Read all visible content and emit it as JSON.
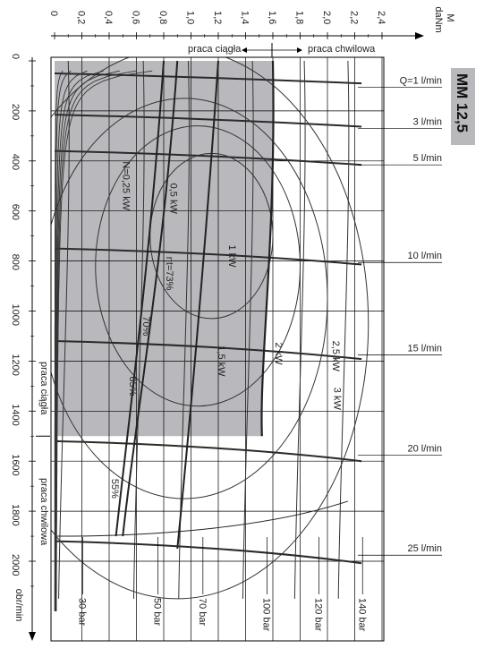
{
  "chart_data": {
    "type": "line",
    "title": "MM 12,5",
    "x_axis": {
      "label": "obr/min",
      "ticks": [
        0,
        200,
        400,
        600,
        800,
        1000,
        1200,
        1400,
        1600,
        1800,
        2000
      ],
      "range": [
        0,
        2200
      ]
    },
    "y_axis": {
      "label_line1": "M",
      "label_line2": "daNm",
      "ticks": [
        "0",
        "0,2",
        "0,4",
        "0,6",
        "0,8",
        "1,0",
        "1,2",
        "1,4",
        "1,6",
        "1,8",
        "2,0",
        "2,2",
        "2,4"
      ],
      "tick_values": [
        0,
        0.2,
        0.4,
        0.6,
        0.8,
        1.0,
        1.2,
        1.4,
        1.6,
        1.8,
        2.0,
        2.2,
        2.4
      ],
      "range": [
        0,
        2.4
      ]
    },
    "regions": {
      "continuous_label": "praca ciągła",
      "intermittent_label": "praca chwilowa",
      "continuous_limit_torque": 1.6,
      "continuous_limit_speed": 1500
    },
    "flow_lines": [
      {
        "label": "Q=1 l/min",
        "speed": 70
      },
      {
        "label": "3 l/min",
        "speed": 235
      },
      {
        "label": "5 l/min",
        "speed": 380
      },
      {
        "label": "10 l/min",
        "speed": 770
      },
      {
        "label": "15 l/min",
        "speed": 1140
      },
      {
        "label": "20 l/min",
        "speed": 1540
      },
      {
        "label": "25 l/min",
        "speed": 1940
      }
    ],
    "pressure_lines": [
      {
        "label": "30 bar",
        "torque": 0.05
      },
      {
        "label": "50 bar",
        "torque": 0.6
      },
      {
        "label": "70 bar",
        "torque": 0.93
      },
      {
        "label": "100 bar",
        "torque": 1.4
      },
      {
        "label": "120 bar",
        "torque": 1.78
      },
      {
        "label": "140 bar",
        "torque": 2.1
      }
    ],
    "power_lines": [
      {
        "label": "N=0,25 kW",
        "power_kw": 0.25
      },
      {
        "label": "0,5 kW",
        "power_kw": 0.5
      },
      {
        "label": "1 kW",
        "power_kw": 1.0
      },
      {
        "label": "1,5 kW",
        "power_kw": 1.5
      },
      {
        "label": "2 kW",
        "power_kw": 2.0
      },
      {
        "label": "2,5 kW",
        "power_kw": 2.5
      },
      {
        "label": "3 kW",
        "power_kw": 3.0
      }
    ],
    "efficiency_labels": [
      {
        "label": "ηt=73%",
        "speed": 850,
        "torque": 0.82
      },
      {
        "label": "70%",
        "speed": 1060,
        "torque": 0.65
      },
      {
        "label": "65%",
        "speed": 1300,
        "torque": 0.55
      },
      {
        "label": "55%",
        "speed": 1710,
        "torque": 0.42
      }
    ],
    "power_label_positions": [
      {
        "label": "N=0,25 kW",
        "speed": 500,
        "torque": 0.5
      },
      {
        "label": "0,5 kW",
        "speed": 550,
        "torque": 0.85
      },
      {
        "label": "1 kW",
        "speed": 780,
        "torque": 1.28
      },
      {
        "label": "1,5 kW",
        "speed": 1200,
        "torque": 1.2
      },
      {
        "label": "2 kW",
        "speed": 1170,
        "torque": 1.62
      },
      {
        "label": "2,5 kW",
        "speed": 1180,
        "torque": 2.04
      },
      {
        "label": "3 kW",
        "speed": 1350,
        "torque": 2.05
      }
    ]
  }
}
